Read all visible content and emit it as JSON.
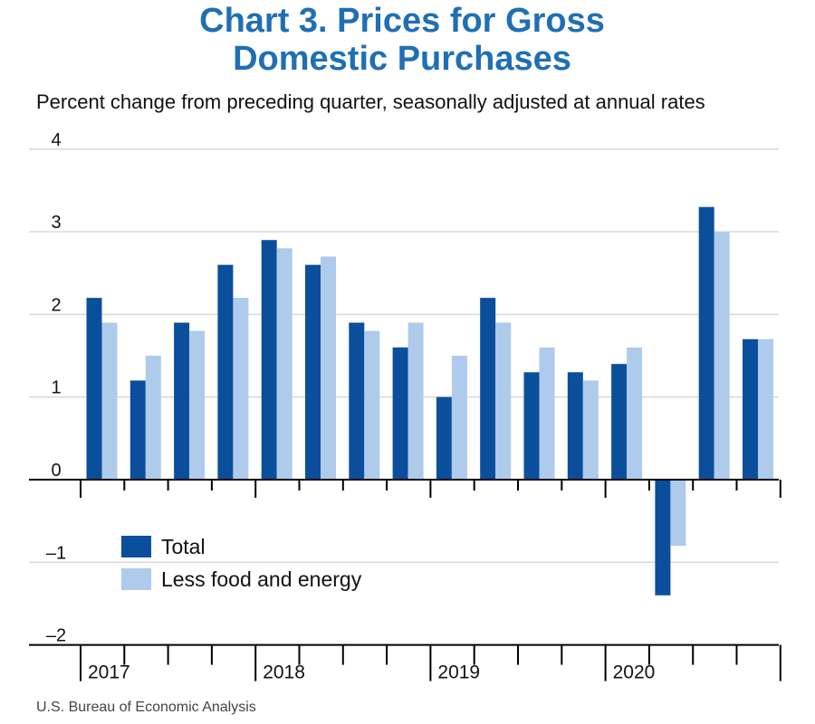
{
  "title_line1": "Chart 3. Prices for Gross",
  "title_line2": "Domestic Purchases",
  "subtitle": "Percent change from preceding quarter, seasonally adjusted at annual rates",
  "source": "U.S. Bureau of Economic Analysis",
  "colors": {
    "total": "#0b4f9c",
    "core": "#aecbeb",
    "title": "#1f6fb4",
    "grid": "#d9d9d9"
  },
  "chart_data": {
    "type": "bar",
    "title": "Chart 3. Prices for Gross Domestic Purchases",
    "subtitle": "Percent change from preceding quarter, seasonally adjusted at annual rates",
    "categories": [
      "2017 Q1",
      "2017 Q2",
      "2017 Q3",
      "2017 Q4",
      "2018 Q1",
      "2018 Q2",
      "2018 Q3",
      "2018 Q4",
      "2019 Q1",
      "2019 Q2",
      "2019 Q3",
      "2019 Q4",
      "2020 Q1",
      "2020 Q2",
      "2020 Q3",
      "2020 Q4"
    ],
    "year_labels": [
      "2017",
      "2018",
      "2019",
      "2020"
    ],
    "series": [
      {
        "name": "Total",
        "values": [
          2.2,
          1.2,
          1.9,
          2.6,
          2.9,
          2.6,
          1.9,
          1.6,
          1.0,
          2.2,
          1.3,
          1.3,
          1.4,
          -1.4,
          3.3,
          1.7
        ]
      },
      {
        "name": "Less food and energy",
        "values": [
          1.9,
          1.5,
          1.8,
          2.2,
          2.8,
          2.7,
          1.8,
          1.9,
          1.5,
          1.9,
          1.6,
          1.2,
          1.6,
          -0.8,
          3.0,
          1.7
        ]
      }
    ],
    "yticks": [
      "4",
      "3",
      "2",
      "1",
      "0",
      "–1",
      "–2"
    ],
    "ylim": [
      -2,
      4
    ],
    "grid": true,
    "legend": {
      "position": "lower-left",
      "entries": [
        "Total",
        "Less food and energy"
      ]
    }
  }
}
